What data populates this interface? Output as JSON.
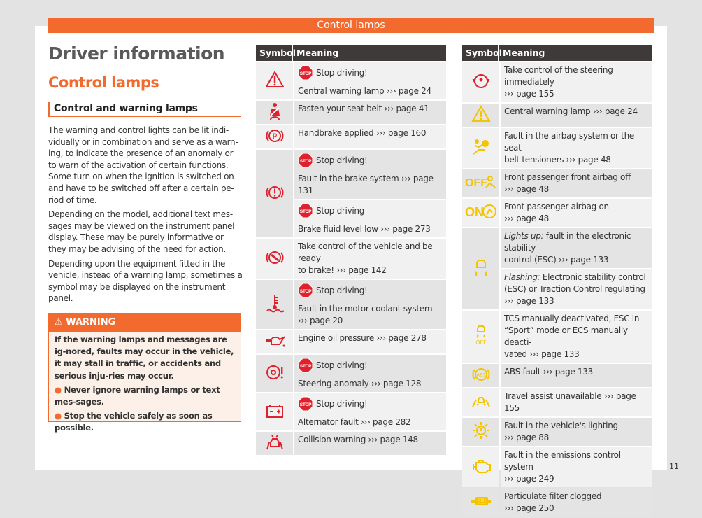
{
  "banner": "Control lamps",
  "title": "Driver information",
  "section": "Control lamps",
  "subsection": "Control and warning lamps",
  "paragraphs": [
    "The warning and control lights can be lit indi-vidually or in combination and serve as a warn-ing, to indicate the presence of an anomaly or to warn of the activation of certain functions. Some turn on when the ignition is switched on and have to be switched off after a certain pe-riod of time.",
    "Depending on the model, additional text mes-sages may be viewed on the instrument panel display. These may be purely informative or they may be advising of the need for action.",
    "Depending upon the equipment fitted in the vehicle, instead of a warning lamp, sometimes a symbol may be displayed on the instrument panel."
  ],
  "warning": {
    "title": "WARNING",
    "text": "If the warning lamps and messages are ig-nored, faults may occur in the vehicle, it may stall in traffic, or accidents and serious inju-ries may occur.",
    "bullets": [
      "Never ignore warning lamps or text mes-sages.",
      "Stop the vehicle safely as soon as possible."
    ]
  },
  "colors": {
    "accent": "#f26a2e",
    "red": "#e0202c",
    "yellow": "#f5c400",
    "header": "#3d3a39"
  },
  "table_headers": {
    "symbol": "Symbol",
    "meaning": "Meaning"
  },
  "stop_label": "STOP",
  "left_table": [
    {
      "icon": "warning-triangle-icon",
      "color": "red",
      "subs": [
        {
          "stop": "Stop driving!",
          "lines": [
            "Central warning lamp ››› page 24"
          ]
        }
      ]
    },
    {
      "icon": "seat-belt-icon",
      "color": "red",
      "subs": [
        {
          "lines": [
            "Fasten your seat belt ››› page 41"
          ]
        }
      ]
    },
    {
      "icon": "handbrake-icon",
      "color": "red",
      "subs": [
        {
          "lines": [
            "Handbrake applied ››› page 160"
          ]
        }
      ]
    },
    {
      "icon": "brake-system-icon",
      "color": "red",
      "subs": [
        {
          "stop": "Stop driving!",
          "lines": [
            "Fault in the brake system ››› page 131"
          ]
        },
        {
          "stop": "Stop driving",
          "lines": [
            "Brake fluid level low ››› page 273"
          ]
        }
      ]
    },
    {
      "icon": "brake-ready-icon",
      "color": "red",
      "subs": [
        {
          "lines": [
            "Take control of the vehicle and be ready",
            "to brake! ››› page 142"
          ]
        }
      ]
    },
    {
      "icon": "coolant-icon",
      "color": "red",
      "subs": [
        {
          "stop": "Stop driving!",
          "lines": [
            "Fault in the motor coolant system",
            "››› page 20"
          ]
        }
      ]
    },
    {
      "icon": "oil-pressure-icon",
      "color": "red",
      "subs": [
        {
          "lines": [
            "Engine oil pressure ››› page 278"
          ]
        }
      ]
    },
    {
      "icon": "steering-anomaly-icon",
      "color": "red",
      "subs": [
        {
          "stop": "Stop driving!",
          "lines": [
            "Steering anomaly ››› page 128"
          ]
        }
      ]
    },
    {
      "icon": "battery-icon",
      "color": "red",
      "subs": [
        {
          "stop": "Stop driving!",
          "lines": [
            "Alternator fault ››› page 282"
          ]
        }
      ]
    },
    {
      "icon": "collision-warning-icon",
      "color": "red",
      "subs": [
        {
          "lines": [
            "Collision warning ››› page 148"
          ]
        }
      ]
    }
  ],
  "right_table": [
    {
      "icon": "steering-wheel-hands-icon",
      "color": "red",
      "subs": [
        {
          "lines": [
            "Take control of the steering immediately",
            "››› page 155"
          ]
        }
      ]
    },
    {
      "icon": "warning-triangle-icon",
      "color": "yellow",
      "subs": [
        {
          "lines": [
            "Central warning lamp ››› page 24"
          ]
        }
      ]
    },
    {
      "icon": "airbag-icon",
      "color": "yellow",
      "subs": [
        {
          "lines": [
            "Fault in the airbag system or the seat",
            "belt tensioners ››› page 48"
          ]
        }
      ]
    },
    {
      "icon": "passenger-airbag-off-icon",
      "color": "yellow",
      "label": "OFF",
      "subs": [
        {
          "lines": [
            "Front passenger front airbag off",
            "››› page 48"
          ]
        }
      ]
    },
    {
      "icon": "passenger-airbag-on-icon",
      "color": "yellow",
      "label": "ON",
      "subs": [
        {
          "lines": [
            "Front passenger airbag on",
            "››› page 48"
          ]
        }
      ]
    },
    {
      "icon": "esc-icon",
      "color": "yellow",
      "subs": [
        {
          "em": "Lights up:",
          "lines": [
            "fault in the electronic stability",
            "control (ESC) ››› page 133"
          ]
        },
        {
          "em": "Flashing:",
          "lines": [
            "Electronic stability control",
            "(ESC) or Traction Control regulating",
            "››› page 133"
          ]
        }
      ]
    },
    {
      "icon": "esc-off-icon",
      "color": "yellow",
      "label": "OFF",
      "subs": [
        {
          "lines": [
            "TCS manually deactivated, ESC in",
            "“Sport” mode or ECS manually deacti-",
            "vated ››› page 133"
          ]
        }
      ]
    },
    {
      "icon": "abs-icon",
      "color": "yellow",
      "label": "ABS",
      "subs": [
        {
          "lines": [
            "ABS fault ››› page 133"
          ]
        }
      ]
    },
    {
      "icon": "travel-assist-icon",
      "color": "yellow",
      "subs": [
        {
          "lines": [
            "Travel assist unavailable ››› page 155"
          ]
        }
      ]
    },
    {
      "icon": "lighting-fault-icon",
      "color": "yellow",
      "subs": [
        {
          "lines": [
            "Fault in the vehicle's lighting",
            "››› page 88"
          ]
        }
      ]
    },
    {
      "icon": "engine-emissions-icon",
      "color": "yellow",
      "subs": [
        {
          "lines": [
            "Fault in the emissions control system",
            "››› page 249"
          ]
        }
      ]
    },
    {
      "icon": "particulate-filter-icon",
      "color": "yellow",
      "subs": [
        {
          "lines": [
            "Particulate filter clogged",
            "››› page 250"
          ]
        }
      ]
    }
  ],
  "page_number": "11"
}
